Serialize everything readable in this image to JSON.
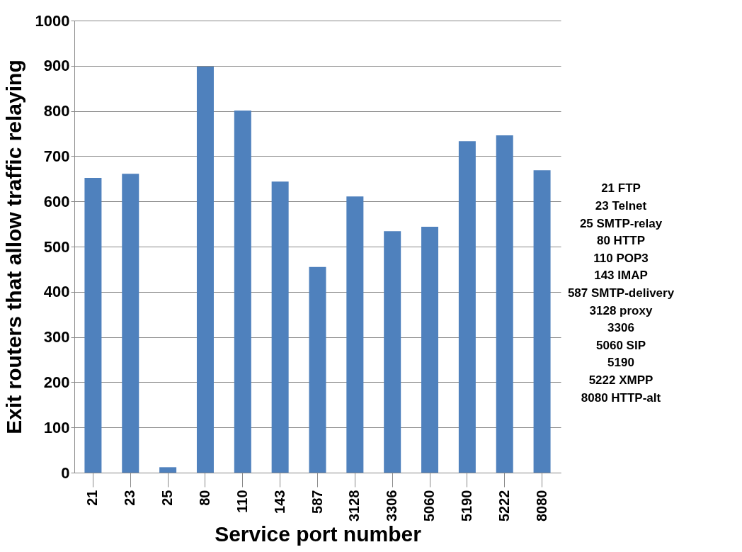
{
  "chart_data": {
    "type": "bar",
    "xlabel": "Service port number",
    "ylabel": "Exit routers that allow traffic relaying",
    "categories": [
      "21",
      "23",
      "25",
      "80",
      "110",
      "143",
      "587",
      "3128",
      "3306",
      "5060",
      "5190",
      "5222",
      "8080"
    ],
    "values": [
      652,
      661,
      12,
      898,
      801,
      644,
      455,
      611,
      534,
      544,
      733,
      746,
      669
    ],
    "color": "#4f81bd",
    "ylim": [
      0,
      1000
    ],
    "yticks": [
      0,
      100,
      200,
      300,
      400,
      500,
      600,
      700,
      800,
      900,
      1000
    ],
    "grid": "y",
    "annotations": [
      "21 FTP",
      "23 Telnet",
      "25 SMTP-relay",
      "80 HTTP",
      "110 POP3",
      "143 IMAP",
      "587 SMTP-delivery",
      "3128 proxy",
      "3306",
      "5060 SIP",
      "5190",
      "5222 XMPP",
      "8080 HTTP-alt"
    ]
  }
}
